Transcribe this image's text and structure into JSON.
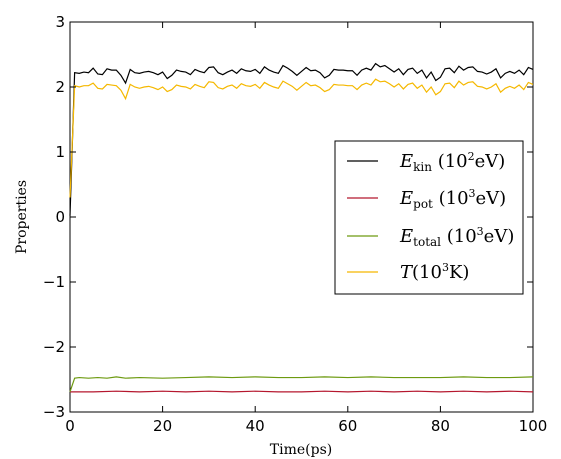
{
  "chart_data": {
    "type": "line",
    "xlabel": "Time(ps)",
    "ylabel": "Properties",
    "xlim": [
      0,
      100
    ],
    "ylim": [
      -3,
      3
    ],
    "x_ticks": [
      0,
      20,
      40,
      60,
      80,
      100
    ],
    "y_ticks": [
      -3,
      -2,
      -1,
      0,
      1,
      2,
      3
    ],
    "x_tick_labels": [
      "0",
      "20",
      "40",
      "60",
      "80",
      "100"
    ],
    "y_tick_labels": [
      "−3",
      "−2",
      "−1",
      "0",
      "1",
      "2",
      "3"
    ],
    "legend_position": "center-right",
    "grid": false,
    "series": [
      {
        "name": "E_kin (10^2 eV)",
        "legend": {
          "base": "E",
          "sub": "kin",
          "pre": " (10",
          "sup": "2",
          "post": "eV)"
        },
        "color": "#000000",
        "x": [
          0,
          1,
          2,
          3,
          4,
          5,
          6,
          7,
          8,
          9,
          10,
          11,
          12,
          13,
          14,
          15,
          16,
          17,
          18,
          19,
          20,
          21,
          22,
          23,
          24,
          25,
          26,
          27,
          28,
          29,
          30,
          31,
          32,
          33,
          34,
          35,
          36,
          37,
          38,
          39,
          40,
          41,
          42,
          43,
          44,
          45,
          46,
          47,
          48,
          49,
          50,
          51,
          52,
          53,
          54,
          55,
          56,
          57,
          58,
          59,
          60,
          61,
          62,
          63,
          64,
          65,
          66,
          67,
          68,
          69,
          70,
          71,
          72,
          73,
          74,
          75,
          76,
          77,
          78,
          79,
          80,
          81,
          82,
          83,
          84,
          85,
          86,
          87,
          88,
          89,
          90,
          91,
          92,
          93,
          94,
          95,
          96,
          97,
          98,
          99,
          100
        ],
        "y": [
          0.02,
          2.22,
          2.21,
          2.23,
          2.22,
          2.29,
          2.2,
          2.19,
          2.28,
          2.26,
          2.26,
          2.18,
          2.06,
          2.27,
          2.22,
          2.21,
          2.23,
          2.24,
          2.22,
          2.19,
          2.23,
          2.13,
          2.18,
          2.26,
          2.24,
          2.23,
          2.19,
          2.27,
          2.24,
          2.22,
          2.3,
          2.31,
          2.22,
          2.19,
          2.23,
          2.26,
          2.21,
          2.28,
          2.25,
          2.24,
          2.27,
          2.21,
          2.31,
          2.26,
          2.23,
          2.21,
          2.33,
          2.29,
          2.24,
          2.18,
          2.24,
          2.3,
          2.25,
          2.26,
          2.22,
          2.14,
          2.18,
          2.27,
          2.26,
          2.26,
          2.25,
          2.25,
          2.18,
          2.26,
          2.29,
          2.26,
          2.36,
          2.31,
          2.33,
          2.28,
          2.23,
          2.28,
          2.19,
          2.27,
          2.29,
          2.21,
          2.26,
          2.14,
          2.23,
          2.1,
          2.15,
          2.28,
          2.29,
          2.22,
          2.32,
          2.26,
          2.3,
          2.31,
          2.24,
          2.23,
          2.2,
          2.23,
          2.28,
          2.14,
          2.21,
          2.24,
          2.21,
          2.26,
          2.19,
          2.3,
          2.27
        ]
      },
      {
        "name": "E_pot (10^3 eV)",
        "legend": {
          "base": "E",
          "sub": "pot",
          "pre": " (10",
          "sup": "3",
          "post": "eV)"
        },
        "color": "#b5172e",
        "x": [
          0,
          5,
          10,
          15,
          20,
          25,
          30,
          35,
          40,
          45,
          50,
          55,
          60,
          65,
          70,
          75,
          80,
          85,
          90,
          95,
          100
        ],
        "y": [
          -2.69,
          -2.69,
          -2.68,
          -2.69,
          -2.68,
          -2.69,
          -2.68,
          -2.69,
          -2.68,
          -2.69,
          -2.69,
          -2.68,
          -2.69,
          -2.68,
          -2.69,
          -2.68,
          -2.69,
          -2.68,
          -2.69,
          -2.68,
          -2.69
        ]
      },
      {
        "name": "E_total (10^3 eV)",
        "legend": {
          "base": "E",
          "sub": "total",
          "pre": " (10",
          "sup": "3",
          "post": "eV)"
        },
        "color": "#6d9a10",
        "x": [
          0,
          1,
          2,
          4,
          6,
          8,
          10,
          12,
          15,
          20,
          25,
          30,
          35,
          40,
          45,
          50,
          55,
          60,
          65,
          70,
          75,
          80,
          85,
          90,
          95,
          100
        ],
        "y": [
          -2.69,
          -2.48,
          -2.47,
          -2.48,
          -2.47,
          -2.48,
          -2.46,
          -2.48,
          -2.47,
          -2.48,
          -2.47,
          -2.46,
          -2.47,
          -2.46,
          -2.47,
          -2.47,
          -2.46,
          -2.47,
          -2.46,
          -2.47,
          -2.47,
          -2.47,
          -2.46,
          -2.47,
          -2.47,
          -2.46
        ]
      },
      {
        "name": "T(10^3 K)",
        "legend": {
          "base": "T",
          "sub": "",
          "pre": "(10",
          "sup": "3",
          "post": "K)"
        },
        "color": "#f5b800",
        "x": [
          0,
          1,
          2,
          3,
          4,
          5,
          6,
          7,
          8,
          9,
          10,
          11,
          12,
          13,
          14,
          15,
          16,
          17,
          18,
          19,
          20,
          21,
          22,
          23,
          24,
          25,
          26,
          27,
          28,
          29,
          30,
          31,
          32,
          33,
          34,
          35,
          36,
          37,
          38,
          39,
          40,
          41,
          42,
          43,
          44,
          45,
          46,
          47,
          48,
          49,
          50,
          51,
          52,
          53,
          54,
          55,
          56,
          57,
          58,
          59,
          60,
          61,
          62,
          63,
          64,
          65,
          66,
          67,
          68,
          69,
          70,
          71,
          72,
          73,
          74,
          75,
          76,
          77,
          78,
          79,
          80,
          81,
          82,
          83,
          84,
          85,
          86,
          87,
          88,
          89,
          90,
          91,
          92,
          93,
          94,
          95,
          96,
          97,
          98,
          99,
          100
        ],
        "y": [
          0.3,
          2.02,
          2.0,
          2.02,
          2.02,
          2.06,
          1.98,
          1.97,
          2.04,
          2.03,
          2.02,
          1.95,
          1.82,
          2.04,
          2.0,
          1.98,
          2.0,
          2.01,
          1.99,
          1.96,
          2.0,
          1.93,
          1.96,
          2.03,
          2.01,
          2.0,
          1.97,
          2.04,
          2.01,
          1.99,
          2.08,
          2.07,
          1.99,
          1.97,
          2.01,
          2.03,
          1.98,
          2.05,
          2.02,
          2.01,
          2.04,
          1.98,
          2.07,
          2.03,
          2.0,
          1.98,
          2.09,
          2.05,
          2.01,
          1.95,
          2.01,
          2.07,
          2.02,
          2.03,
          1.99,
          1.93,
          1.96,
          2.04,
          2.03,
          2.03,
          2.02,
          2.02,
          1.96,
          2.03,
          2.06,
          2.03,
          2.12,
          2.08,
          2.09,
          2.05,
          2.0,
          2.05,
          1.97,
          2.04,
          2.06,
          1.98,
          2.03,
          1.92,
          2.0,
          1.88,
          1.93,
          2.05,
          2.06,
          1.99,
          2.09,
          2.03,
          2.07,
          2.08,
          2.01,
          2.0,
          1.97,
          2.0,
          2.05,
          1.92,
          1.98,
          2.01,
          1.98,
          2.03,
          1.96,
          2.07,
          2.04
        ]
      }
    ]
  }
}
